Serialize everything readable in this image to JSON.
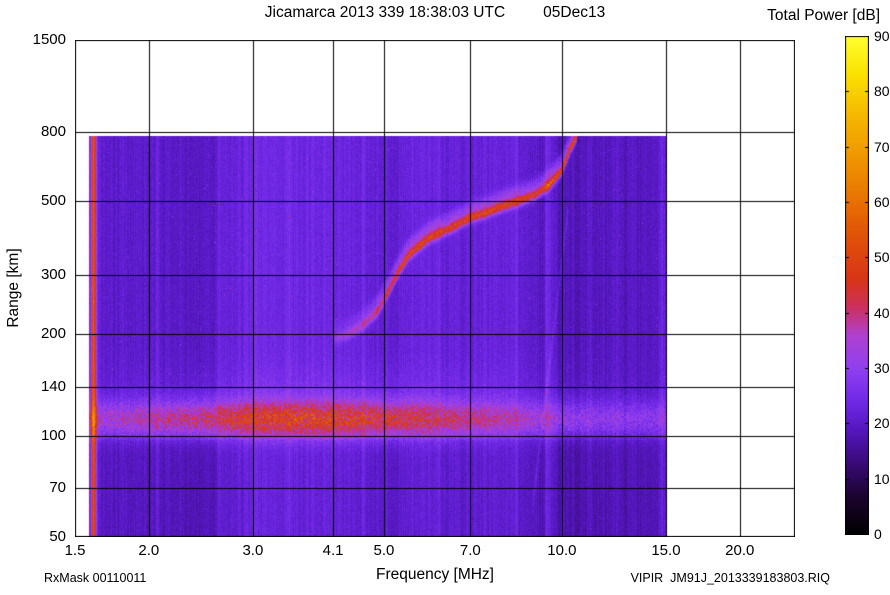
{
  "header": {
    "title": "Jicamarca 2013 339 18:38:03 UTC",
    "date": "05Dec13",
    "colorbar_title": "Total Power [dB]"
  },
  "footer": {
    "rxmask": "RxMask 00110011",
    "filename": "VIPIR  JM91J_2013339183803.RIQ"
  },
  "chart_data": {
    "type": "heatmap",
    "title": "Jicamarca 2013 339 18:38:03 UTC 05Dec13",
    "xlabel": "Frequency [MHz]",
    "ylabel": "Range [km]",
    "x_scale": "log",
    "y_scale": "log",
    "x_range": [
      1.5,
      24.8
    ],
    "y_range": [
      50,
      1500
    ],
    "x_ticks": [
      1.5,
      2.0,
      3.0,
      4.1,
      5.0,
      7.0,
      10.0,
      15.0,
      20.0
    ],
    "x_tick_labels": [
      "1.5",
      "2.0",
      "3.0",
      "4.1",
      "5.0",
      "7.0",
      "10.0",
      "15.0",
      "20.0"
    ],
    "y_ticks": [
      50,
      70,
      100,
      140,
      200,
      300,
      500,
      800,
      1500
    ],
    "y_tick_labels": [
      "50",
      "70",
      "100",
      "140",
      "200",
      "300",
      "500",
      "800",
      "1500"
    ],
    "grid": true,
    "data_extent": {
      "f_min": 1.585,
      "f_max": 15.05,
      "r_min": 50,
      "r_max": 780
    },
    "background_db": 21.2,
    "colorbar": {
      "label": "Total Power [dB]",
      "min": 0,
      "max": 90,
      "ticks": [
        0,
        10,
        20,
        30,
        40,
        50,
        60,
        70,
        80,
        90
      ],
      "stops": [
        [
          0,
          "#000000"
        ],
        [
          7,
          "#1c0430"
        ],
        [
          13,
          "#3a0a78"
        ],
        [
          19,
          "#5517c0"
        ],
        [
          24,
          "#7028e6"
        ],
        [
          30,
          "#9040f0"
        ],
        [
          36,
          "#b040d0"
        ],
        [
          41,
          "#cc3060"
        ],
        [
          46,
          "#d83418"
        ],
        [
          55,
          "#e25706"
        ],
        [
          65,
          "#ec8800"
        ],
        [
          75,
          "#f4b400"
        ],
        [
          83,
          "#fae000"
        ],
        [
          90,
          "#ffff30"
        ]
      ]
    },
    "calibration_stripe": {
      "f_mhz": 1.613,
      "sigma_log": 0.003,
      "db_boost": 34
    },
    "e_layer": {
      "center_km": 112,
      "sigma_log": 0.038,
      "peak_freq_mhz": 3.8,
      "freq_sigma_log": 0.22,
      "base_db_boost": 9,
      "peak_db_boost": 16
    },
    "f_trace": {
      "points": [
        [
          4.1,
          193
        ],
        [
          4.35,
          200
        ],
        [
          4.6,
          213
        ],
        [
          4.85,
          232
        ],
        [
          5.0,
          253
        ],
        [
          5.25,
          300
        ],
        [
          5.5,
          344
        ],
        [
          5.75,
          368
        ],
        [
          6.0,
          390
        ],
        [
          6.5,
          415
        ],
        [
          7.0,
          445
        ],
        [
          7.5,
          462
        ],
        [
          8.0,
          484
        ],
        [
          8.5,
          500
        ],
        [
          9.0,
          520
        ],
        [
          9.5,
          555
        ],
        [
          10.0,
          616
        ],
        [
          10.3,
          705
        ],
        [
          10.6,
          780
        ]
      ],
      "db_boost_min": 7,
      "db_boost_max": 26,
      "extra_db_above_9mhz": 4,
      "second_trace_range_factor": 1.07,
      "second_trace_strength": 0.33
    },
    "interference_lines": [
      [
        2.07,
        3.5
      ],
      [
        2.63,
        2.5
      ],
      [
        3.02,
        3.0
      ],
      [
        3.44,
        2.5
      ],
      [
        4.62,
        2.0
      ],
      [
        6.17,
        2.0
      ],
      [
        8.35,
        2.0
      ],
      [
        9.45,
        5.0
      ],
      [
        9.63,
        3.0
      ],
      [
        11.2,
        2.0
      ],
      [
        12.35,
        2.0
      ],
      [
        13.15,
        2.0
      ],
      [
        14.78,
        2.5
      ]
    ],
    "broad_bands": [
      [
        3.35,
        0.07,
        1.7
      ],
      [
        4.95,
        0.05,
        1.2
      ],
      [
        12.3,
        0.08,
        -1.2
      ]
    ],
    "diagonal_streak": {
      "from": [
        8.9,
        60
      ],
      "to": [
        10.25,
        470
      ],
      "db": 4
    }
  }
}
